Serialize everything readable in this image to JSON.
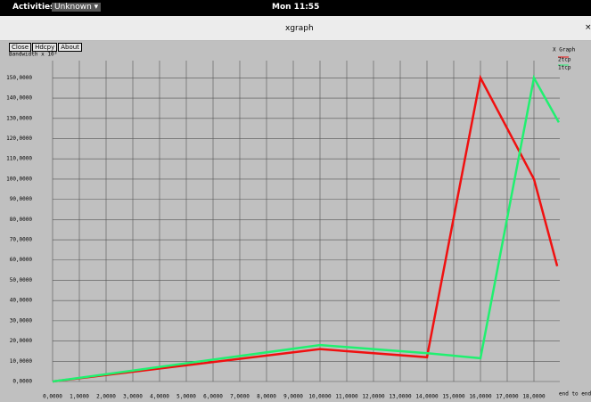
{
  "topbar": {
    "activities": "Activities",
    "app_menu": "Unknown ▾",
    "clock": "Mon 11:55"
  },
  "window": {
    "title": "xgraph",
    "close_icon": "×",
    "buttons": [
      "Close",
      "Hdcpy",
      "About"
    ]
  },
  "chart_data": {
    "type": "line",
    "title": "X Graph",
    "ylabel": "Bandwidth x 10³",
    "xlabel": "end to end r",
    "xlim": [
      0,
      19.3
    ],
    "ylim": [
      0,
      155
    ],
    "xticks": [
      {
        "value": 0,
        "label": "0,0000"
      },
      {
        "value": 1,
        "label": "1,0000"
      },
      {
        "value": 2,
        "label": "2,0000"
      },
      {
        "value": 3,
        "label": "3,0000"
      },
      {
        "value": 4,
        "label": "4,0000"
      },
      {
        "value": 5,
        "label": "5,0000"
      },
      {
        "value": 6,
        "label": "6,0000"
      },
      {
        "value": 7,
        "label": "7,0000"
      },
      {
        "value": 8,
        "label": "8,0000"
      },
      {
        "value": 9,
        "label": "9,0000"
      },
      {
        "value": 10,
        "label": "10,0000"
      },
      {
        "value": 11,
        "label": "11,0000"
      },
      {
        "value": 12,
        "label": "12,0000"
      },
      {
        "value": 13,
        "label": "13,0000"
      },
      {
        "value": 14,
        "label": "14,0000"
      },
      {
        "value": 15,
        "label": "15,0000"
      },
      {
        "value": 16,
        "label": "16,0000"
      },
      {
        "value": 17,
        "label": "17,0000"
      },
      {
        "value": 18,
        "label": "18,0000"
      }
    ],
    "yticks": [
      {
        "value": 0,
        "label": "0,0000"
      },
      {
        "value": 10,
        "label": "10,0000"
      },
      {
        "value": 20,
        "label": "20,0000"
      },
      {
        "value": 30,
        "label": "30,0000"
      },
      {
        "value": 40,
        "label": "40,0000"
      },
      {
        "value": 50,
        "label": "50,0000"
      },
      {
        "value": 60,
        "label": "60,0000"
      },
      {
        "value": 70,
        "label": "70,0000"
      },
      {
        "value": 80,
        "label": "80,0000"
      },
      {
        "value": 90,
        "label": "90,0000"
      },
      {
        "value": 100,
        "label": "100,0000"
      },
      {
        "value": 110,
        "label": "110,0000"
      },
      {
        "value": 120,
        "label": "120,0000"
      },
      {
        "value": 130,
        "label": "130,0000"
      },
      {
        "value": 140,
        "label": "140,0000"
      },
      {
        "value": 150,
        "label": "150,0000"
      }
    ],
    "grid": true,
    "series": [
      {
        "name": "2tcp",
        "color": "#f01010",
        "x": [
          0,
          10,
          14,
          16,
          18,
          18.87
        ],
        "values": [
          0,
          16,
          12,
          150,
          100,
          57
        ]
      },
      {
        "name": "1tcp",
        "color": "#20f070",
        "x": [
          0,
          10,
          14,
          16,
          18,
          18.93
        ],
        "values": [
          0,
          18,
          14,
          11.5,
          150,
          128
        ]
      }
    ]
  }
}
